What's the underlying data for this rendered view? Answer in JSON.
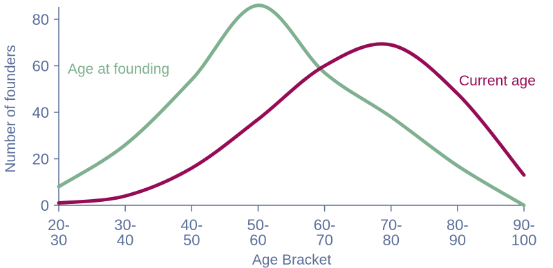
{
  "chart_data": {
    "type": "line",
    "xlabel": "Age Bracket",
    "ylabel": "Number of founders",
    "ylim": [
      0,
      80
    ],
    "yticks": [
      0,
      20,
      40,
      60,
      80
    ],
    "grid": false,
    "legend": "inline labels",
    "categories": [
      {
        "line1": "20-",
        "line2": "30"
      },
      {
        "line1": "30-",
        "line2": "40"
      },
      {
        "line1": "40-",
        "line2": "50"
      },
      {
        "line1": "50-",
        "line2": "60"
      },
      {
        "line1": "60-",
        "line2": "70"
      },
      {
        "line1": "70-",
        "line2": "80"
      },
      {
        "line1": "80-",
        "line2": "90"
      },
      {
        "line1": "90-",
        "line2": "100"
      }
    ],
    "series": [
      {
        "name": "Age at founding",
        "color": "#7fb08f",
        "values": [
          8,
          26,
          54,
          86,
          57,
          38,
          17,
          0
        ]
      },
      {
        "name": "Current age",
        "color": "#960b56",
        "values": [
          1,
          4,
          16,
          37,
          60,
          69,
          48,
          13
        ]
      }
    ],
    "axis_color": "#5b6f99"
  }
}
